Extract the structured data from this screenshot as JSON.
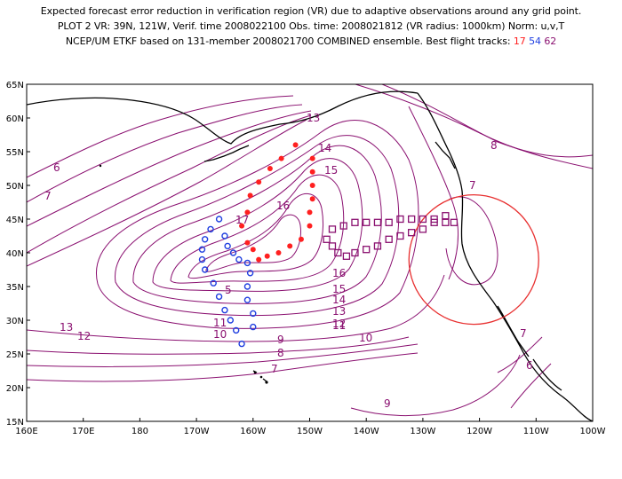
{
  "title": {
    "line1": "Expected forecast error reduction in verification region (VR) due to adaptive observations around any grid point.",
    "line2": "PLOT 2 VR: 39N, 121W, Verif. time 2008022100 Obs. time: 2008021812 (VR radius: 1000km) Norm: u,v,T",
    "line3_prefix": "NCEP/UM ETKF based on 131-member 2008021700 COMBINED ensemble.  Best flight tracks:",
    "flight_red": "17",
    "flight_blue": "54",
    "flight_purple": "62"
  },
  "axes": {
    "y_ticks": [
      "65N",
      "60N",
      "55N",
      "50N",
      "45N",
      "40N",
      "35N",
      "30N",
      "25N",
      "20N",
      "15N"
    ],
    "x_ticks": [
      "160E",
      "170E",
      "180",
      "170W",
      "160W",
      "150W",
      "140W",
      "130W",
      "120W",
      "110W",
      "100W"
    ]
  },
  "colors": {
    "contour": "#8a1070",
    "coast": "#000000",
    "circle": "#e83030",
    "red_track": "#ff2020",
    "blue_track": "#1f3fe0",
    "purple_track": "#8a1070"
  },
  "contour_labels": [
    "6",
    "7",
    "8",
    "7",
    "13",
    "14",
    "15",
    "16",
    "17",
    "16",
    "15",
    "14",
    "13",
    "12",
    "11",
    "10",
    "9",
    "8",
    "7",
    "6",
    "7",
    "9",
    "12",
    "13",
    "11",
    "10",
    "5"
  ],
  "verification_region": {
    "lat": 39,
    "lon": -121,
    "radius_km": 1000
  },
  "flight_tracks": {
    "red_17": [
      [
        -152.5,
        56
      ],
      [
        -155,
        54
      ],
      [
        -157,
        52.5
      ],
      [
        -159,
        50.5
      ],
      [
        -160.5,
        48.5
      ],
      [
        -161,
        46
      ],
      [
        -162,
        44
      ],
      [
        -161,
        41.5
      ],
      [
        -160,
        40.5
      ],
      [
        -159,
        39
      ],
      [
        -157.5,
        39.5
      ],
      [
        -155.5,
        40
      ],
      [
        -153.5,
        41
      ],
      [
        -151.5,
        42
      ],
      [
        -150,
        44
      ],
      [
        -150,
        46
      ],
      [
        -149.5,
        48
      ],
      [
        -149.5,
        50
      ],
      [
        -149.5,
        52
      ],
      [
        -149.5,
        54
      ]
    ],
    "blue_54": [
      [
        -166,
        45
      ],
      [
        -167.5,
        43.5
      ],
      [
        -168.5,
        42
      ],
      [
        -169,
        40.5
      ],
      [
        -169,
        39
      ],
      [
        -168.5,
        37.5
      ],
      [
        -167,
        35.5
      ],
      [
        -166,
        33.5
      ],
      [
        -165,
        31.5
      ],
      [
        -164,
        30
      ],
      [
        -163,
        28.5
      ],
      [
        -162,
        26.5
      ],
      [
        -160,
        29
      ],
      [
        -160,
        31
      ],
      [
        -161,
        33
      ],
      [
        -161,
        35
      ],
      [
        -160.5,
        37
      ],
      [
        -161,
        38.5
      ],
      [
        -162.5,
        39
      ],
      [
        -163.5,
        40
      ],
      [
        -164.5,
        41
      ],
      [
        -165,
        42.5
      ]
    ],
    "purple_62": [
      [
        -147,
        42
      ],
      [
        -146,
        41
      ],
      [
        -145,
        40
      ],
      [
        -143.5,
        39.5
      ],
      [
        -142,
        40
      ],
      [
        -140,
        40.5
      ],
      [
        -138,
        41
      ],
      [
        -136,
        42
      ],
      [
        -134,
        42.5
      ],
      [
        -132,
        43
      ],
      [
        -130,
        43.5
      ],
      [
        -128,
        44.5
      ],
      [
        -126,
        45.5
      ],
      [
        -124.5,
        44.5
      ],
      [
        -126,
        44.5
      ],
      [
        -128,
        45
      ],
      [
        -130,
        45
      ],
      [
        -132,
        45
      ],
      [
        -134,
        45
      ],
      [
        -136,
        44.5
      ],
      [
        -138,
        44.5
      ],
      [
        -140,
        44.5
      ],
      [
        -142,
        44.5
      ],
      [
        -144,
        44
      ],
      [
        -146,
        43.5
      ]
    ]
  }
}
